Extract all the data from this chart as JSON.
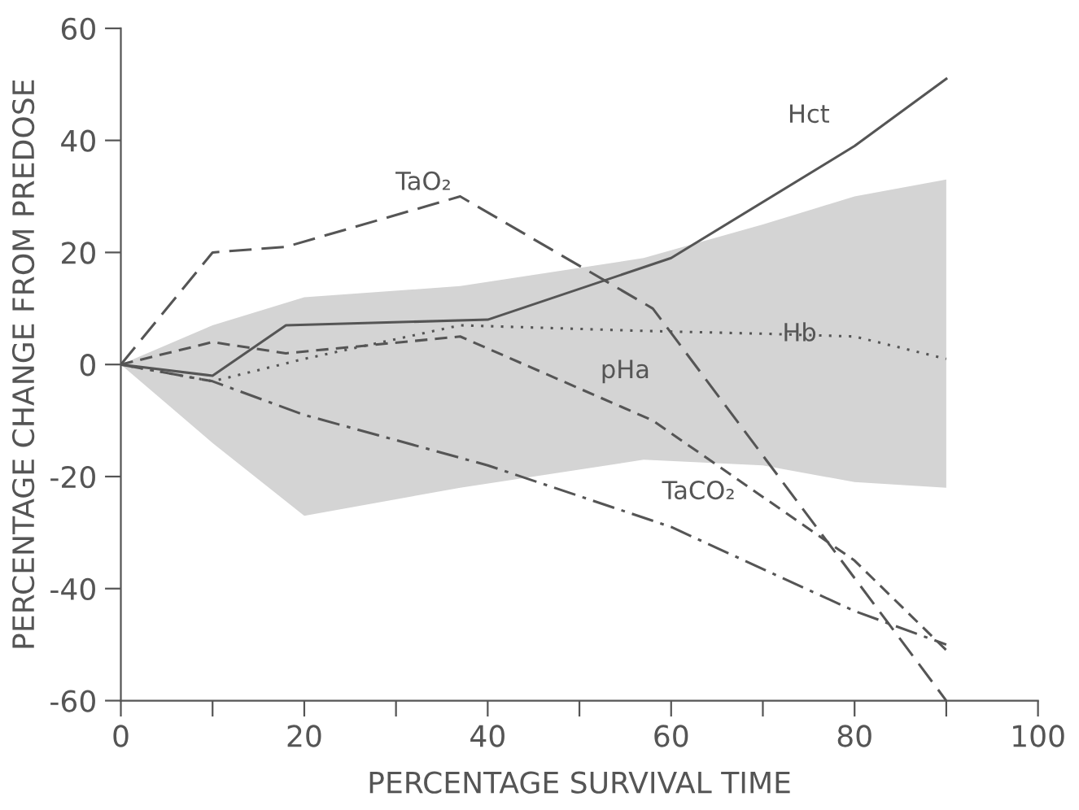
{
  "chart_data": {
    "type": "line",
    "xlabel": "PERCENTAGE SURVIVAL TIME",
    "ylabel": "PERCENTAGE CHANGE FROM PREDOSE",
    "xlim": [
      0,
      100
    ],
    "ylim": [
      -60,
      60
    ],
    "xticks": [
      0,
      {
        "value": 10,
        "label": null
      },
      20,
      {
        "value": 30,
        "label": null
      },
      40,
      {
        "value": 50,
        "label": null
      },
      60,
      {
        "value": 70,
        "label": null
      },
      80,
      {
        "value": 90,
        "label": null
      },
      100
    ],
    "yticks": [
      -60,
      -40,
      -20,
      0,
      20,
      40,
      60
    ],
    "grid": false,
    "legend": false,
    "series": [
      {
        "color": "#555555",
        "line_style": "solid",
        "x": [
          0,
          10,
          18,
          40,
          60,
          80,
          90
        ],
        "values": [
          0,
          -2,
          7,
          8,
          19,
          39,
          51
        ]
      },
      {
        "color": "#555555",
        "line_style": "long_dashed",
        "x": [
          0,
          10,
          18,
          37,
          58,
          90
        ],
        "values": [
          0,
          20,
          21,
          30,
          10,
          -60
        ]
      },
      {
        "color": "#555555",
        "line_style": "dashed",
        "x": [
          0,
          10,
          18,
          37,
          58,
          80,
          90
        ],
        "values": [
          0,
          4,
          2,
          5,
          -10,
          -35,
          -51
        ]
      },
      {
        "color": "#555555",
        "line_style": "dotted",
        "x": [
          0,
          10,
          20,
          37,
          57,
          70,
          80,
          90
        ],
        "values": [
          0,
          -3,
          1,
          7,
          6,
          5.5,
          5,
          1
        ],
        "lower": [
          0,
          -14,
          -27,
          -22,
          -17,
          -18,
          -21,
          -22
        ],
        "upper": [
          0,
          7,
          12,
          14,
          19,
          25,
          30,
          33
        ]
      },
      {
        "color": "#555555",
        "line_style": "dashdot",
        "x": [
          0,
          10,
          20,
          40,
          60,
          80,
          90
        ],
        "values": [
          0,
          -3,
          -9,
          -18,
          -29,
          -44,
          -50
        ]
      }
    ],
    "annotations": [
      "Hct",
      "TaO₂",
      "Hb",
      "pHa",
      "TaCO₂"
    ]
  }
}
